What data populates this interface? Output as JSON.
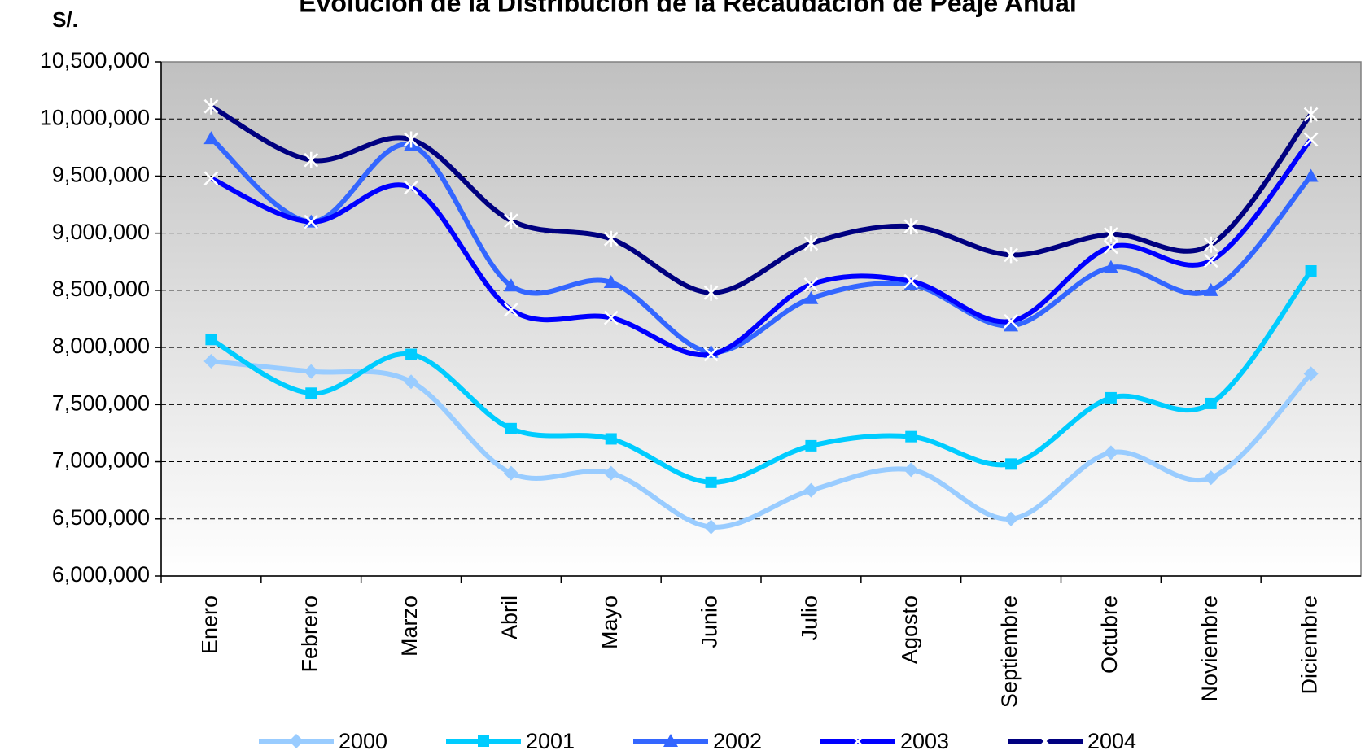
{
  "chart_data": {
    "type": "line",
    "title": "Evolución de la Distribución de la Recaudación de Peaje Anual",
    "y_label": "S/.",
    "categories": [
      "Enero",
      "Febrero",
      "Marzo",
      "Abril",
      "Mayo",
      "Junio",
      "Julio",
      "Agosto",
      "Septiembre",
      "Octubre",
      "Noviembre",
      "Diciembre"
    ],
    "series": [
      {
        "name": "2000",
        "color": "#99ccff",
        "marker": "diamond",
        "values": [
          7880000,
          7790000,
          7700000,
          6900000,
          6900000,
          6430000,
          6750000,
          6930000,
          6500000,
          7080000,
          6860000,
          7770000
        ]
      },
      {
        "name": "2001",
        "color": "#00ccff",
        "marker": "square",
        "values": [
          8070000,
          7600000,
          7940000,
          7290000,
          7200000,
          6820000,
          7140000,
          7220000,
          6980000,
          7560000,
          7510000,
          8670000
        ]
      },
      {
        "name": "2002",
        "color": "#3366ff",
        "marker": "triangle",
        "values": [
          9830000,
          9100000,
          9770000,
          8540000,
          8570000,
          7960000,
          8430000,
          8550000,
          8190000,
          8700000,
          8500000,
          9500000
        ]
      },
      {
        "name": "2003",
        "color": "#0000ff",
        "marker": "x",
        "values": [
          9480000,
          9100000,
          9400000,
          8330000,
          8260000,
          7940000,
          8550000,
          8580000,
          8230000,
          8880000,
          8760000,
          9820000
        ]
      },
      {
        "name": "2004",
        "color": "#000080",
        "marker": "star",
        "values": [
          10110000,
          9640000,
          9820000,
          9110000,
          8950000,
          8480000,
          8910000,
          9060000,
          8810000,
          8990000,
          8900000,
          10040000
        ]
      }
    ],
    "ylim": [
      6000000,
      10500000
    ],
    "yticks": [
      {
        "value": 6000000,
        "label": "6,000,000"
      },
      {
        "value": 6500000,
        "label": "6,500,000"
      },
      {
        "value": 7000000,
        "label": "7,000,000"
      },
      {
        "value": 7500000,
        "label": "7,500,000"
      },
      {
        "value": 8000000,
        "label": "8,000,000"
      },
      {
        "value": 8500000,
        "label": "8,500,000"
      },
      {
        "value": 9000000,
        "label": "9,000,000"
      },
      {
        "value": 9500000,
        "label": "9,500,000"
      },
      {
        "value": 10000000,
        "label": "10,000,000"
      },
      {
        "value": 10500000,
        "label": "10,500,000"
      }
    ],
    "grid": true,
    "smooth": true,
    "legend": "bottom"
  }
}
